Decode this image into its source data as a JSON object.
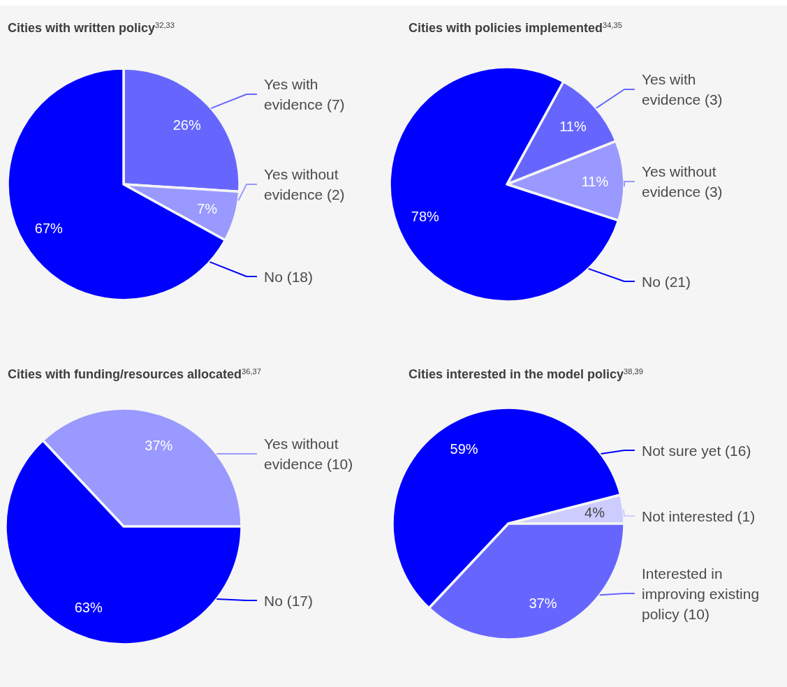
{
  "chart_data": [
    {
      "type": "pie",
      "title": "Cities with written policy$^{32,33}$",
      "categories": [
        "Yes with evidence (7)",
        "Yes without evidence (2)",
        "No (18)"
      ],
      "values": [
        26,
        7,
        67
      ],
      "colors": [
        "#6666ff",
        "#9999ff",
        "#0000ff"
      ],
      "value_labels": [
        "26%",
        "7%",
        "67%"
      ]
    },
    {
      "type": "pie",
      "title": "Cities with policies implemented$^{34,35}$",
      "categories": [
        "Yes with evidence (3)",
        "Yes without evidence (3)",
        "No (21)"
      ],
      "values": [
        11,
        11,
        78
      ],
      "colors": [
        "#6666ff",
        "#9999ff",
        "#0000ff"
      ],
      "value_labels": [
        "11%",
        "11%",
        "78%"
      ]
    },
    {
      "type": "pie",
      "title": "Cities with funding/resources allocated$^{36,37}$",
      "categories": [
        "Yes without evidence (10)",
        "No (17)"
      ],
      "values": [
        37,
        63
      ],
      "colors": [
        "#9999ff",
        "#0000ff"
      ],
      "value_labels": [
        "37%",
        "63%"
      ]
    },
    {
      "type": "pie",
      "title": "Cities interested in the model policy$^{38,39}$",
      "categories": [
        "Not sure yet (16)",
        "Not interested (1)",
        "Interested in improving existing policy (10)"
      ],
      "values": [
        59,
        4,
        37
      ],
      "colors": [
        "#0000ff",
        "#ccccff",
        "#6666ff"
      ],
      "value_labels": [
        "59%",
        "4%",
        "37%"
      ]
    }
  ]
}
